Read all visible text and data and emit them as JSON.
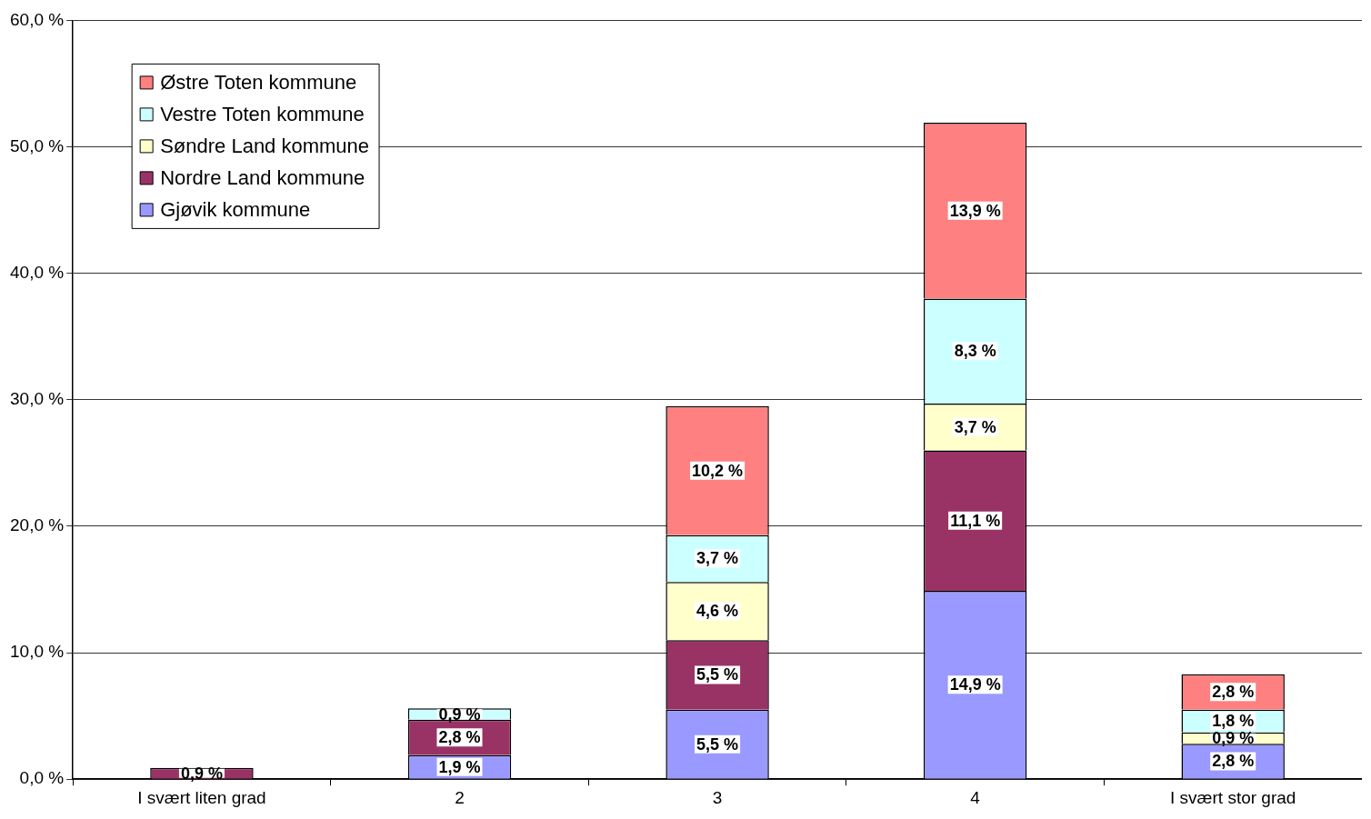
{
  "chart_data": {
    "type": "bar",
    "stacked": true,
    "categories": [
      "I svært liten grad",
      "2",
      "3",
      "4",
      "I svært stor grad"
    ],
    "series": [
      {
        "name": "Gjøvik kommune",
        "color": "#9999ff",
        "values": [
          null,
          1.9,
          5.5,
          14.9,
          2.8
        ],
        "value_labels": [
          null,
          "1,9 %",
          "5,5 %",
          "14,9 %",
          "2,8 %"
        ]
      },
      {
        "name": "Nordre Land kommune",
        "color": "#993366",
        "values": [
          0.9,
          2.8,
          5.5,
          11.1,
          null
        ],
        "value_labels": [
          "0,9 %",
          "2,8 %",
          "5,5 %",
          "11,1 %",
          null
        ]
      },
      {
        "name": "Søndre Land kommune",
        "color": "#ffffcc",
        "values": [
          null,
          null,
          4.6,
          3.7,
          0.9
        ],
        "value_labels": [
          null,
          null,
          "4,6 %",
          "3,7 %",
          "0,9 %"
        ]
      },
      {
        "name": "Vestre Toten kommune",
        "color": "#ccffff",
        "values": [
          null,
          0.9,
          3.7,
          8.3,
          1.8
        ],
        "value_labels": [
          null,
          "0,9 %",
          "3,7 %",
          "8,3 %",
          "1,8 %"
        ]
      },
      {
        "name": "Østre Toten kommune",
        "color": "#ff8080",
        "values": [
          null,
          null,
          10.2,
          13.9,
          2.8
        ],
        "value_labels": [
          null,
          null,
          "10,2 %",
          "13,9 %",
          "2,8 %"
        ]
      }
    ],
    "ylim": [
      0,
      60
    ],
    "yticks": [
      {
        "value": 0,
        "label": "0,0 %"
      },
      {
        "value": 10,
        "label": "10,0 %"
      },
      {
        "value": 20,
        "label": "20,0 %"
      },
      {
        "value": 30,
        "label": "30,0 %"
      },
      {
        "value": 40,
        "label": "40,0 %"
      },
      {
        "value": 50,
        "label": "50,0 %"
      },
      {
        "value": 60,
        "label": "60,0 %"
      }
    ],
    "grid": "y",
    "legend": "top left"
  }
}
